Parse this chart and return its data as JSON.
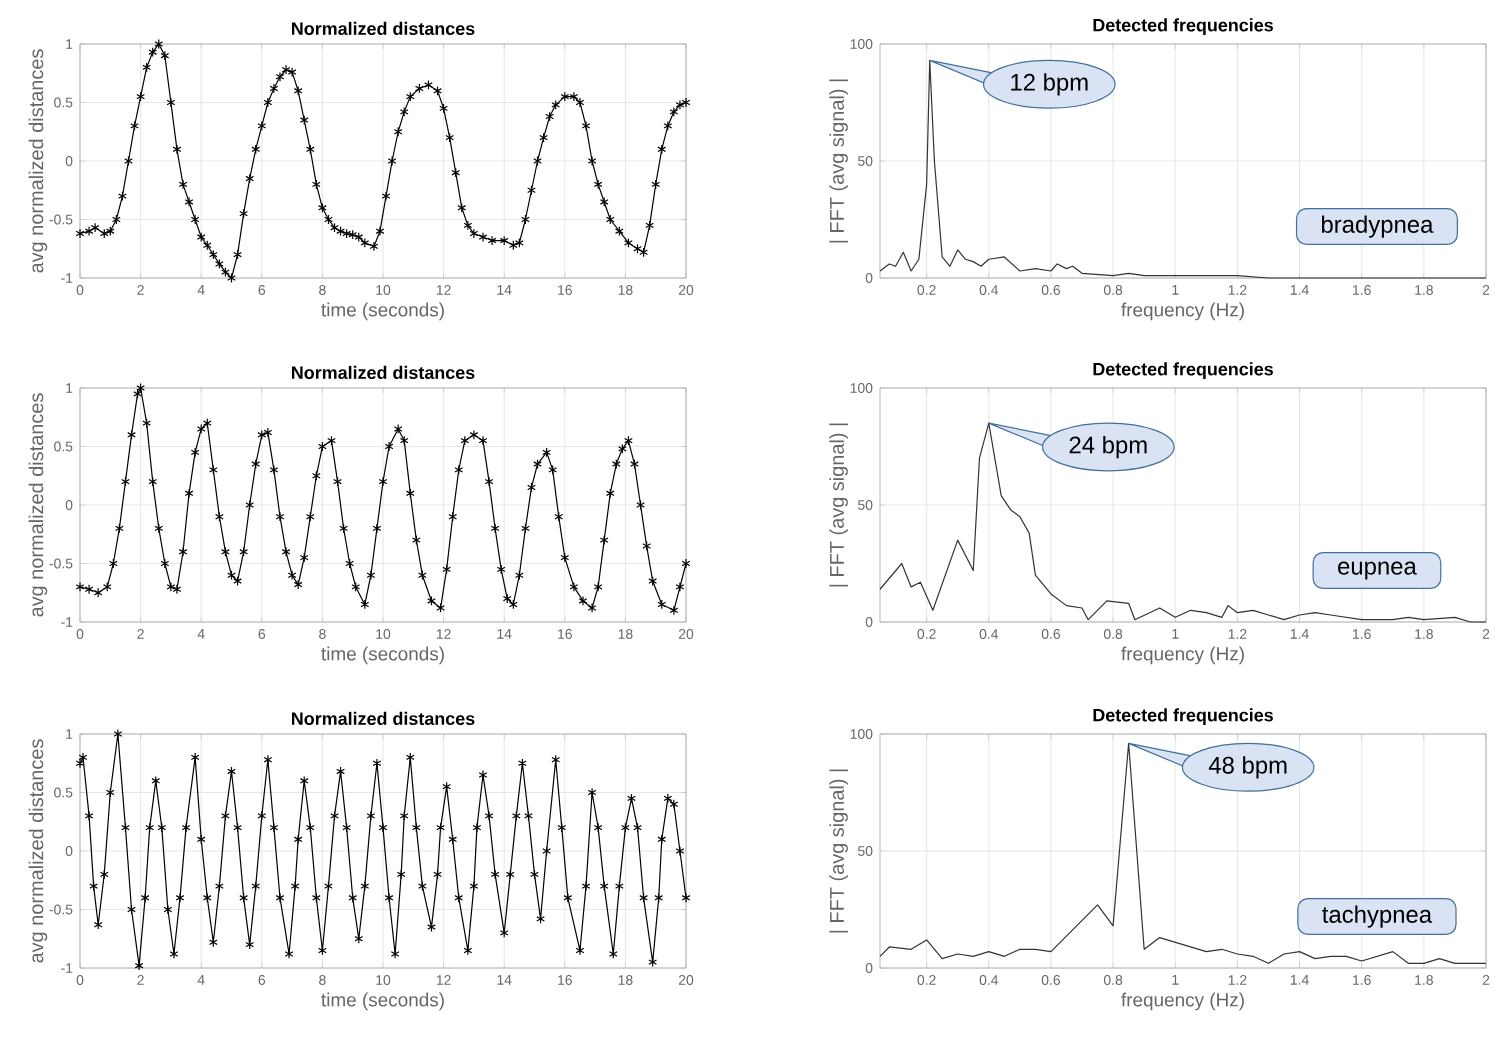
{
  "chart_data": [
    {
      "type": "line",
      "title": "Normalized distances",
      "xlabel": "time (seconds)",
      "ylabel": "avg normalized distances",
      "color": "#000000",
      "marker": "cross",
      "grid": true,
      "xlim": [
        0,
        20
      ],
      "ylim": [
        -1,
        1
      ],
      "xticks": [
        0,
        2,
        4,
        6,
        8,
        10,
        12,
        14,
        16,
        18,
        20
      ],
      "yticks": [
        -1,
        -0.5,
        0,
        0.5,
        1
      ],
      "x": [
        0,
        0.3,
        0.5,
        0.8,
        1.0,
        1.2,
        1.4,
        1.6,
        1.8,
        2.0,
        2.2,
        2.4,
        2.6,
        2.8,
        3.0,
        3.2,
        3.4,
        3.6,
        3.8,
        4.0,
        4.2,
        4.4,
        4.6,
        4.8,
        5.0,
        5.2,
        5.4,
        5.6,
        5.8,
        6.0,
        6.2,
        6.4,
        6.6,
        6.8,
        7.0,
        7.2,
        7.4,
        7.6,
        7.8,
        8.0,
        8.2,
        8.4,
        8.6,
        8.8,
        9.0,
        9.2,
        9.4,
        9.7,
        9.9,
        10.1,
        10.3,
        10.5,
        10.7,
        10.9,
        11.2,
        11.5,
        11.8,
        12.0,
        12.2,
        12.4,
        12.6,
        12.8,
        13.0,
        13.3,
        13.6,
        14.0,
        14.3,
        14.5,
        14.7,
        14.9,
        15.1,
        15.3,
        15.5,
        15.7,
        16.0,
        16.3,
        16.5,
        16.7,
        16.9,
        17.1,
        17.3,
        17.5,
        17.8,
        18.1,
        18.4,
        18.6,
        18.8,
        19.0,
        19.2,
        19.4,
        19.6,
        19.8,
        20.0
      ],
      "values": [
        -0.62,
        -0.6,
        -0.57,
        -0.62,
        -0.6,
        -0.5,
        -0.3,
        0.0,
        0.3,
        0.55,
        0.8,
        0.93,
        1.0,
        0.9,
        0.5,
        0.1,
        -0.2,
        -0.35,
        -0.5,
        -0.65,
        -0.72,
        -0.8,
        -0.88,
        -0.95,
        -1.0,
        -0.8,
        -0.45,
        -0.15,
        0.1,
        0.3,
        0.5,
        0.62,
        0.72,
        0.78,
        0.76,
        0.6,
        0.35,
        0.1,
        -0.2,
        -0.4,
        -0.5,
        -0.57,
        -0.6,
        -0.62,
        -0.63,
        -0.65,
        -0.7,
        -0.73,
        -0.6,
        -0.3,
        0.0,
        0.25,
        0.42,
        0.55,
        0.62,
        0.65,
        0.6,
        0.45,
        0.2,
        -0.1,
        -0.4,
        -0.55,
        -0.62,
        -0.65,
        -0.68,
        -0.68,
        -0.72,
        -0.7,
        -0.5,
        -0.25,
        0.0,
        0.2,
        0.38,
        0.48,
        0.55,
        0.55,
        0.5,
        0.3,
        0.0,
        -0.2,
        -0.35,
        -0.5,
        -0.6,
        -0.7,
        -0.75,
        -0.78,
        -0.55,
        -0.2,
        0.1,
        0.3,
        0.42,
        0.48,
        0.5
      ]
    },
    {
      "type": "line",
      "title": "Detected frequencies",
      "xlabel": "frequency (Hz)",
      "ylabel": "| FFT (avg signal) |",
      "color": "#333333",
      "grid": true,
      "xlim": [
        0.05,
        2
      ],
      "ylim": [
        0,
        100
      ],
      "xticks": [
        0.2,
        0.4,
        0.6,
        0.8,
        1,
        1.2,
        1.4,
        1.6,
        1.8,
        2
      ],
      "yticks": [
        0,
        50,
        100
      ],
      "annotations": [
        {
          "text": "12 bpm",
          "x": 0.21,
          "y": 93
        },
        "bradypnea"
      ],
      "x": [
        0.05,
        0.08,
        0.1,
        0.125,
        0.15,
        0.175,
        0.2,
        0.21,
        0.225,
        0.25,
        0.275,
        0.3,
        0.325,
        0.35,
        0.375,
        0.4,
        0.45,
        0.5,
        0.55,
        0.6,
        0.62,
        0.65,
        0.67,
        0.7,
        0.8,
        0.85,
        0.9,
        1.0,
        1.1,
        1.2,
        1.3,
        1.5,
        1.8,
        2.0
      ],
      "values": [
        3,
        6,
        5,
        11,
        3,
        8,
        40,
        93,
        50,
        9,
        5,
        12,
        8,
        7,
        5,
        8,
        9,
        3,
        4,
        3,
        6,
        4,
        5,
        2,
        1,
        2,
        1,
        1,
        1,
        1,
        0,
        0,
        0,
        0
      ]
    },
    {
      "type": "line",
      "title": "Normalized distances",
      "xlabel": "time (seconds)",
      "ylabel": "avg normalized distances",
      "color": "#000000",
      "marker": "cross",
      "grid": true,
      "xlim": [
        0,
        20
      ],
      "ylim": [
        -1,
        1
      ],
      "xticks": [
        0,
        2,
        4,
        6,
        8,
        10,
        12,
        14,
        16,
        18,
        20
      ],
      "yticks": [
        -1,
        -0.5,
        0,
        0.5,
        1
      ],
      "x": [
        0,
        0.3,
        0.6,
        0.9,
        1.1,
        1.3,
        1.5,
        1.7,
        1.9,
        2.0,
        2.2,
        2.4,
        2.6,
        2.8,
        3.0,
        3.2,
        3.4,
        3.6,
        3.8,
        4.0,
        4.2,
        4.4,
        4.6,
        4.8,
        5.0,
        5.2,
        5.4,
        5.6,
        5.8,
        6.0,
        6.2,
        6.4,
        6.6,
        6.8,
        7.0,
        7.2,
        7.4,
        7.6,
        7.8,
        8.0,
        8.3,
        8.5,
        8.7,
        8.9,
        9.1,
        9.4,
        9.6,
        9.8,
        10.0,
        10.2,
        10.5,
        10.7,
        10.9,
        11.1,
        11.3,
        11.6,
        11.9,
        12.1,
        12.3,
        12.5,
        12.7,
        13.0,
        13.3,
        13.5,
        13.7,
        13.9,
        14.1,
        14.3,
        14.5,
        14.7,
        14.9,
        15.1,
        15.4,
        15.6,
        15.8,
        16.0,
        16.3,
        16.6,
        16.9,
        17.1,
        17.3,
        17.5,
        17.7,
        17.9,
        18.1,
        18.3,
        18.5,
        18.7,
        18.9,
        19.2,
        19.6,
        19.8,
        20.0
      ],
      "values": [
        -0.7,
        -0.72,
        -0.75,
        -0.7,
        -0.5,
        -0.2,
        0.2,
        0.6,
        0.95,
        1.0,
        0.7,
        0.2,
        -0.2,
        -0.5,
        -0.7,
        -0.72,
        -0.4,
        0.1,
        0.45,
        0.65,
        0.7,
        0.3,
        -0.1,
        -0.4,
        -0.6,
        -0.65,
        -0.4,
        0.0,
        0.35,
        0.6,
        0.62,
        0.3,
        -0.1,
        -0.4,
        -0.6,
        -0.68,
        -0.45,
        -0.1,
        0.25,
        0.5,
        0.55,
        0.2,
        -0.2,
        -0.5,
        -0.7,
        -0.85,
        -0.6,
        -0.2,
        0.2,
        0.5,
        0.65,
        0.55,
        0.1,
        -0.3,
        -0.6,
        -0.82,
        -0.88,
        -0.55,
        -0.1,
        0.3,
        0.55,
        0.6,
        0.55,
        0.2,
        -0.2,
        -0.55,
        -0.8,
        -0.85,
        -0.6,
        -0.2,
        0.15,
        0.35,
        0.45,
        0.3,
        -0.1,
        -0.45,
        -0.7,
        -0.82,
        -0.88,
        -0.7,
        -0.3,
        0.1,
        0.35,
        0.48,
        0.55,
        0.35,
        0.0,
        -0.35,
        -0.65,
        -0.85,
        -0.9,
        -0.7,
        -0.5
      ]
    },
    {
      "type": "line",
      "title": "Detected frequencies",
      "xlabel": "frequency (Hz)",
      "ylabel": "| FFT (avg signal) |",
      "color": "#333333",
      "grid": true,
      "xlim": [
        0.05,
        2
      ],
      "ylim": [
        0,
        100
      ],
      "xticks": [
        0.2,
        0.4,
        0.6,
        0.8,
        1,
        1.2,
        1.4,
        1.6,
        1.8,
        2
      ],
      "yticks": [
        0,
        50,
        100
      ],
      "annotations": [
        {
          "text": "24 bpm",
          "x": 0.4,
          "y": 85
        },
        "eupnea"
      ],
      "x": [
        0.05,
        0.12,
        0.15,
        0.18,
        0.22,
        0.3,
        0.35,
        0.37,
        0.4,
        0.44,
        0.47,
        0.5,
        0.53,
        0.55,
        0.6,
        0.65,
        0.7,
        0.72,
        0.78,
        0.85,
        0.87,
        0.95,
        1.0,
        1.05,
        1.1,
        1.15,
        1.17,
        1.2,
        1.25,
        1.3,
        1.35,
        1.4,
        1.45,
        1.5,
        1.55,
        1.6,
        1.7,
        1.75,
        1.8,
        1.9,
        1.95,
        2.0
      ],
      "values": [
        14,
        25,
        15,
        17,
        5,
        35,
        22,
        70,
        85,
        54,
        48,
        45,
        38,
        20,
        12,
        7,
        6,
        1,
        9,
        8,
        1,
        6,
        2,
        5,
        4,
        2,
        7,
        4,
        5,
        3,
        1,
        3,
        4,
        3,
        2,
        1,
        1,
        2,
        1,
        2,
        0,
        0
      ]
    },
    {
      "type": "line",
      "title": "Normalized distances",
      "xlabel": "time (seconds)",
      "ylabel": "avg normalized distances",
      "color": "#000000",
      "marker": "cross",
      "grid": true,
      "xlim": [
        0,
        20
      ],
      "ylim": [
        -1,
        1
      ],
      "xticks": [
        0,
        2,
        4,
        6,
        8,
        10,
        12,
        14,
        16,
        18,
        20
      ],
      "yticks": [
        -1,
        -0.5,
        0,
        0.5,
        1
      ],
      "x": [
        0,
        0.1,
        0.3,
        0.45,
        0.6,
        0.8,
        1.0,
        1.25,
        1.5,
        1.7,
        1.95,
        2.15,
        2.3,
        2.5,
        2.7,
        2.9,
        3.1,
        3.3,
        3.5,
        3.8,
        4.0,
        4.2,
        4.4,
        4.6,
        4.8,
        5.0,
        5.2,
        5.4,
        5.6,
        5.8,
        6.0,
        6.2,
        6.4,
        6.6,
        6.9,
        7.1,
        7.2,
        7.4,
        7.6,
        7.8,
        8.0,
        8.2,
        8.4,
        8.6,
        8.8,
        9.0,
        9.2,
        9.4,
        9.6,
        9.8,
        10.0,
        10.2,
        10.4,
        10.6,
        10.7,
        10.9,
        11.1,
        11.3,
        11.6,
        11.8,
        11.9,
        12.1,
        12.3,
        12.5,
        12.8,
        13.0,
        13.1,
        13.3,
        13.5,
        13.7,
        14.0,
        14.2,
        14.4,
        14.6,
        14.8,
        15.0,
        15.2,
        15.4,
        15.7,
        15.9,
        16.1,
        16.5,
        16.7,
        16.9,
        17.1,
        17.3,
        17.6,
        17.8,
        18.0,
        18.2,
        18.4,
        18.6,
        18.9,
        19.1,
        19.2,
        19.4,
        19.6,
        19.8,
        20.0
      ],
      "values": [
        0.75,
        0.8,
        0.3,
        -0.3,
        -0.63,
        -0.2,
        0.5,
        1.0,
        0.2,
        -0.5,
        -0.98,
        -0.4,
        0.2,
        0.6,
        0.2,
        -0.5,
        -0.88,
        -0.4,
        0.2,
        0.8,
        0.1,
        -0.4,
        -0.78,
        -0.3,
        0.3,
        0.68,
        0.2,
        -0.4,
        -0.8,
        -0.3,
        0.3,
        0.78,
        0.2,
        -0.4,
        -0.88,
        -0.3,
        0.1,
        0.6,
        0.2,
        -0.4,
        -0.85,
        -0.3,
        0.3,
        0.68,
        0.2,
        -0.4,
        -0.75,
        -0.3,
        0.3,
        0.75,
        0.2,
        -0.4,
        -0.88,
        -0.2,
        0.3,
        0.8,
        0.2,
        -0.3,
        -0.65,
        -0.2,
        0.2,
        0.55,
        0.1,
        -0.4,
        -0.85,
        -0.3,
        0.2,
        0.65,
        0.3,
        -0.2,
        -0.7,
        -0.2,
        0.3,
        0.75,
        0.3,
        -0.2,
        -0.58,
        0.0,
        0.78,
        0.2,
        -0.4,
        -0.85,
        -0.3,
        0.5,
        0.2,
        -0.3,
        -0.88,
        -0.3,
        0.2,
        0.45,
        0.2,
        -0.4,
        -0.95,
        -0.4,
        0.1,
        0.45,
        0.4,
        0.0,
        -0.4
      ]
    },
    {
      "type": "line",
      "title": "Detected frequencies",
      "xlabel": "frequency (Hz)",
      "ylabel": "| FFT (avg signal) |",
      "color": "#333333",
      "grid": true,
      "xlim": [
        0.05,
        2
      ],
      "ylim": [
        0,
        100
      ],
      "xticks": [
        0.2,
        0.4,
        0.6,
        0.8,
        1,
        1.2,
        1.4,
        1.6,
        1.8,
        2
      ],
      "yticks": [
        0,
        50,
        100
      ],
      "annotations": [
        {
          "text": "48 bpm",
          "x": 0.85,
          "y": 96
        },
        "tachypnea"
      ],
      "x": [
        0.05,
        0.08,
        0.15,
        0.2,
        0.25,
        0.3,
        0.35,
        0.4,
        0.45,
        0.5,
        0.55,
        0.6,
        0.75,
        0.8,
        0.85,
        0.9,
        0.95,
        1.0,
        1.1,
        1.15,
        1.2,
        1.25,
        1.3,
        1.35,
        1.4,
        1.45,
        1.5,
        1.55,
        1.6,
        1.65,
        1.7,
        1.75,
        1.8,
        1.85,
        1.9,
        2.0
      ],
      "values": [
        5,
        9,
        8,
        12,
        4,
        6,
        5,
        7,
        5,
        8,
        8,
        7,
        27,
        18,
        96,
        8,
        13,
        11,
        7,
        8,
        6,
        5,
        2,
        6,
        7,
        4,
        5,
        5,
        3,
        5,
        7,
        2,
        2,
        4,
        2,
        2
      ]
    }
  ]
}
